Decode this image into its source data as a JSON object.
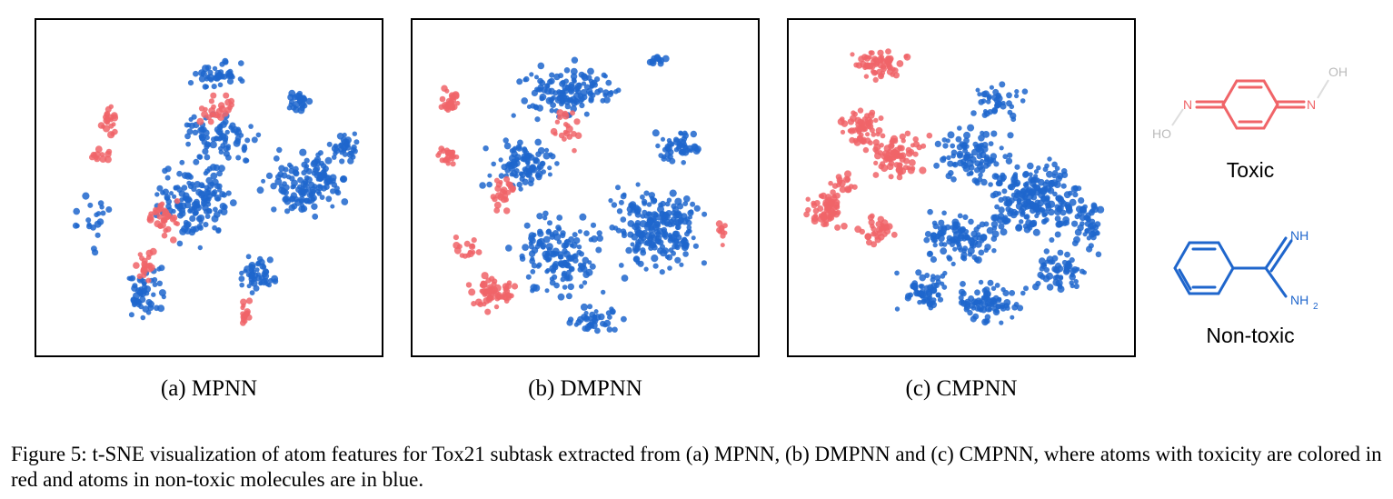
{
  "colors": {
    "toxic": "#f06468",
    "nontoxic": "#1f66cc"
  },
  "panels": [
    {
      "id": "a",
      "subcaption": "(a)  MPNN"
    },
    {
      "id": "b",
      "subcaption": "(b)  DMPNN"
    },
    {
      "id": "c",
      "subcaption": "(c)  CMPNN"
    }
  ],
  "legend": {
    "toxic": {
      "label": "Toxic",
      "atom_labels": {
        "n_left": "N",
        "n_right": "N",
        "oh_left": "HO",
        "oh_right": "OH"
      }
    },
    "nontoxic": {
      "label": "Non-toxic",
      "atom_labels": {
        "nh": "NH",
        "nh2": "NH",
        "nh2_sub": "2"
      }
    }
  },
  "caption": {
    "text": "Figure 5: t-SNE visualization of atom features for Tox21 subtask extracted from (a) MPNN, (b) DMPNN and (c) CMPNN, where atoms with toxicity are colored in red and atoms in non-toxic molecules are in blue."
  }
}
